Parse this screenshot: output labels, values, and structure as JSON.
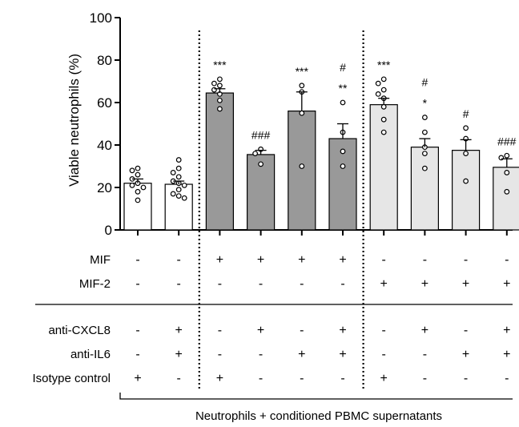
{
  "chart_data": {
    "type": "bar",
    "ylabel": "Viable neutrophils (%)",
    "ylim": [
      0,
      100
    ],
    "yticks": [
      "0",
      "20",
      "40",
      "60",
      "80",
      "100"
    ],
    "bars": [
      {
        "value": 22,
        "err": 2,
        "fill": "#ffffff",
        "points": [
          29,
          28,
          26,
          24,
          22,
          21,
          20,
          18,
          14
        ]
      },
      {
        "value": 21.5,
        "err": 1.5,
        "fill": "#ffffff",
        "points": [
          33,
          29,
          27,
          25,
          23,
          22,
          21,
          19,
          17,
          16,
          15
        ]
      },
      {
        "value": 64.5,
        "err": 2,
        "fill": "#999999",
        "points": [
          71,
          69,
          68,
          66,
          64,
          61,
          57
        ]
      },
      {
        "value": 35.5,
        "err": 2,
        "fill": "#999999",
        "points": [
          38,
          36,
          31
        ]
      },
      {
        "value": 56,
        "err": 9,
        "fill": "#999999",
        "points": [
          68,
          65,
          55,
          30
        ]
      },
      {
        "value": 43,
        "err": 7,
        "fill": "#999999",
        "points": [
          60,
          46,
          37,
          30
        ]
      },
      {
        "value": 59,
        "err": 3,
        "fill": "#e6e6e6",
        "points": [
          71,
          69,
          66,
          64,
          62,
          58,
          52,
          46
        ]
      },
      {
        "value": 39,
        "err": 4,
        "fill": "#e6e6e6",
        "points": [
          53,
          46,
          39,
          36,
          29
        ]
      },
      {
        "value": 37.5,
        "err": 5,
        "fill": "#e6e6e6",
        "points": [
          48,
          43,
          36,
          23
        ]
      },
      {
        "value": 29.5,
        "err": 4,
        "fill": "#e6e6e6",
        "points": [
          35,
          34,
          27,
          18
        ]
      }
    ],
    "annotations": [
      {
        "bar": 2,
        "lines": [
          "***"
        ]
      },
      {
        "bar": 3,
        "lines": [
          "###"
        ]
      },
      {
        "bar": 4,
        "lines": [
          "***"
        ]
      },
      {
        "bar": 5,
        "lines": [
          "#",
          "**"
        ]
      },
      {
        "bar": 6,
        "lines": [
          "***"
        ]
      },
      {
        "bar": 7,
        "lines": [
          "#",
          "*"
        ]
      },
      {
        "bar": 8,
        "lines": [
          "#"
        ]
      },
      {
        "bar": 9,
        "lines": [
          "###"
        ]
      }
    ],
    "conditions": [
      {
        "label": "MIF",
        "signs": [
          "-",
          "-",
          "+",
          "+",
          "+",
          "+",
          "-",
          "-",
          "-",
          "-"
        ]
      },
      {
        "label": "MIF-2",
        "signs": [
          "-",
          "-",
          "-",
          "-",
          "-",
          "-",
          "+",
          "+",
          "+",
          "+"
        ]
      },
      {
        "label": "anti-CXCL8",
        "signs": [
          "-",
          "+",
          "-",
          "+",
          "-",
          "+",
          "-",
          "+",
          "-",
          "+"
        ]
      },
      {
        "label": "anti-IL6",
        "signs": [
          "-",
          "+",
          "-",
          "-",
          "+",
          "+",
          "-",
          "-",
          "+",
          "+"
        ]
      },
      {
        "label": "Isotype control",
        "signs": [
          "+",
          "-",
          "+",
          "-",
          "-",
          "-",
          "+",
          "-",
          "-",
          "-"
        ]
      }
    ],
    "bottom_label": "Neutrophils + conditioned PBMC supernatants"
  }
}
